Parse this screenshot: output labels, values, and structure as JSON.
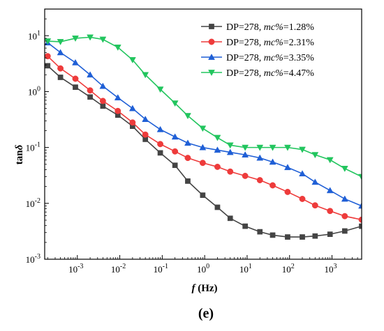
{
  "chart_data": {
    "type": "line",
    "xlabel_main": "f",
    "xlabel_unit": " (Hz)",
    "ylabel_main": "tan",
    "ylabel_sym": "δ",
    "panel_label": "(e)",
    "x_scale": "log",
    "y_scale": "log",
    "xlim": [
      0.00017,
      5000
    ],
    "ylim": [
      0.001,
      30
    ],
    "x_ticks": [
      0.001,
      0.01,
      0.1,
      1,
      10,
      100,
      1000
    ],
    "x_tick_labels": [
      {
        "base": "10",
        "exp": "-3"
      },
      {
        "base": "10",
        "exp": "-2"
      },
      {
        "base": "10",
        "exp": "-1"
      },
      {
        "base": "10",
        "exp": "0"
      },
      {
        "base": "10",
        "exp": "1"
      },
      {
        "base": "10",
        "exp": "2"
      },
      {
        "base": "10",
        "exp": "3"
      }
    ],
    "y_ticks": [
      0.001,
      0.01,
      0.1,
      1,
      10
    ],
    "y_tick_labels": [
      {
        "base": "10",
        "exp": "-3"
      },
      {
        "base": "10",
        "exp": "-2"
      },
      {
        "base": "10",
        "exp": "-1"
      },
      {
        "base": "10",
        "exp": "0"
      },
      {
        "base": "10",
        "exp": "1"
      }
    ],
    "legend_position": "top-right",
    "grid": false,
    "x": [
      0.0002,
      0.0004,
      0.0009,
      0.002,
      0.004,
      0.009,
      0.02,
      0.04,
      0.09,
      0.2,
      0.4,
      0.9,
      2,
      4,
      9,
      20,
      40,
      90,
      200,
      400,
      900,
      2000,
      5000
    ],
    "series": [
      {
        "name_prefix": "DP=278, ",
        "name_italic": "mc%",
        "name_suffix": "=1.28%",
        "marker": "square",
        "color": "#444444",
        "values": [
          2.9,
          1.8,
          1.2,
          0.8,
          0.55,
          0.38,
          0.24,
          0.14,
          0.08,
          0.048,
          0.025,
          0.014,
          0.0085,
          0.0054,
          0.0039,
          0.0031,
          0.0027,
          0.0025,
          0.0025,
          0.0026,
          0.0028,
          0.0032,
          0.0039
        ]
      },
      {
        "name_prefix": "DP=278, ",
        "name_italic": "mc%",
        "name_suffix": "=2.31%",
        "marker": "circle",
        "color": "#ee3b3b",
        "values": [
          4.3,
          2.6,
          1.7,
          1.05,
          0.68,
          0.45,
          0.28,
          0.17,
          0.115,
          0.085,
          0.065,
          0.053,
          0.045,
          0.037,
          0.031,
          0.026,
          0.021,
          0.016,
          0.012,
          0.0092,
          0.0073,
          0.0059,
          0.0051
        ]
      },
      {
        "name_prefix": "DP=278, ",
        "name_italic": "mc%",
        "name_suffix": "=3.35%",
        "marker": "triangle-up",
        "color": "#1f5fd6",
        "values": [
          7.5,
          5.0,
          3.3,
          2.0,
          1.25,
          0.78,
          0.5,
          0.32,
          0.21,
          0.155,
          0.12,
          0.1,
          0.09,
          0.082,
          0.074,
          0.065,
          0.055,
          0.044,
          0.034,
          0.024,
          0.017,
          0.012,
          0.009
        ]
      },
      {
        "name_prefix": "DP=278, ",
        "name_italic": "mc%",
        "name_suffix": "=4.47%",
        "marker": "triangle-down",
        "color": "#22c55e",
        "values": [
          8.0,
          7.8,
          9.0,
          9.4,
          8.6,
          6.2,
          3.7,
          2.0,
          1.1,
          0.62,
          0.37,
          0.22,
          0.15,
          0.11,
          0.1,
          0.1,
          0.1,
          0.1,
          0.092,
          0.074,
          0.06,
          0.042,
          0.03
        ]
      }
    ]
  }
}
